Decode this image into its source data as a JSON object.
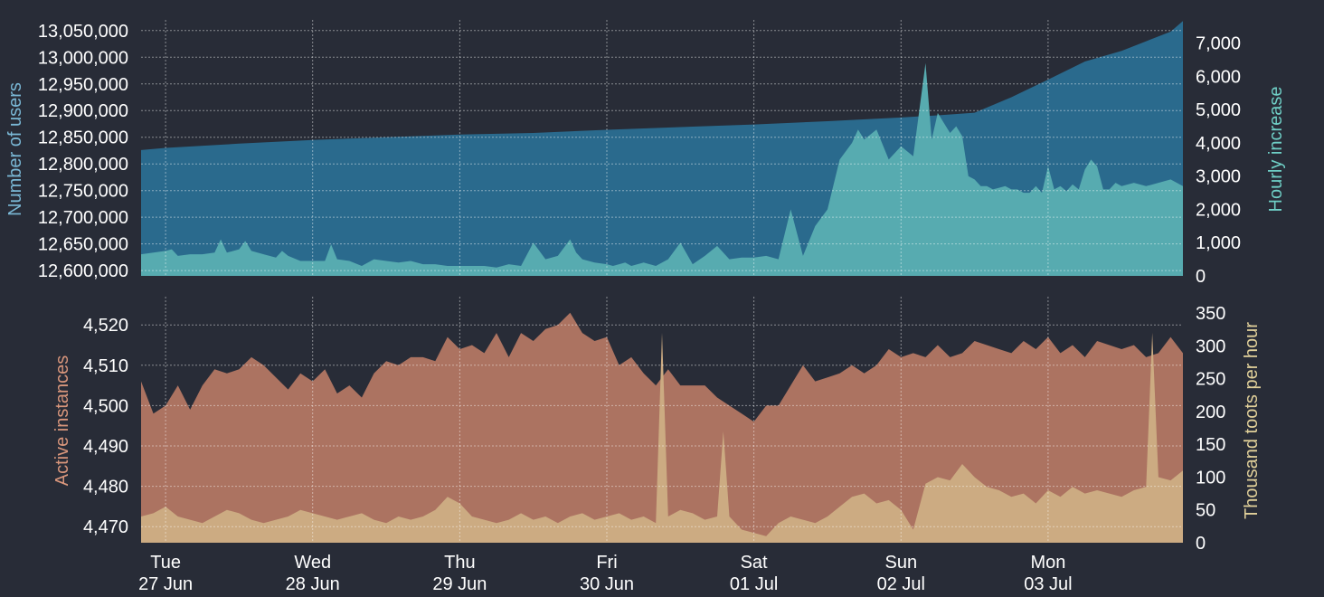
{
  "colors": {
    "background": "#282c37",
    "users_area": "#2a6a8d",
    "hourly_area": "#57abb0",
    "users_axis_label": "#7ab8d6",
    "hourly_axis_label": "#6fcfc6",
    "instances_area": "#ac7361",
    "toots_area": "#ccab82",
    "instances_axis_label": "#d9967c",
    "toots_axis_label": "#e2d19a",
    "tick_text": "#ffffff",
    "grid": "rgba(255,255,255,0.45)"
  },
  "x_axis": {
    "ticks": [
      {
        "day": "Tue",
        "date": "27 Jun"
      },
      {
        "day": "Wed",
        "date": "28 Jun"
      },
      {
        "day": "Thu",
        "date": "29 Jun"
      },
      {
        "day": "Fri",
        "date": "30 Jun"
      },
      {
        "day": "Sat",
        "date": "01 Jul"
      },
      {
        "day": "Sun",
        "date": "02 Jul"
      },
      {
        "day": "Mon",
        "date": "03 Jul"
      }
    ]
  },
  "chart_data": [
    {
      "type": "area",
      "x_unit": "hours since 00:00 27 Jun",
      "x_range": [
        -4,
        166
      ],
      "grid": true,
      "left_axis": {
        "label": "Number of users",
        "ylim": [
          12590000,
          13070000
        ],
        "ticks": [
          12600000,
          12650000,
          12700000,
          12750000,
          12800000,
          12850000,
          12900000,
          12950000,
          13000000,
          13050000
        ],
        "tick_labels": [
          "12,600,000",
          "12,650,000",
          "12,700,000",
          "12,750,000",
          "12,800,000",
          "12,850,000",
          "12,900,000",
          "12,950,000",
          "13,000,000",
          "13,050,000"
        ]
      },
      "right_axis": {
        "label": "Hourly increase",
        "ylim": [
          0,
          7700
        ],
        "ticks": [
          0,
          1000,
          2000,
          3000,
          4000,
          5000,
          6000,
          7000
        ],
        "tick_labels": [
          "0",
          "1,000",
          "2,000",
          "3,000",
          "4,000",
          "5,000",
          "6,000",
          "7,000"
        ]
      },
      "series": [
        {
          "name": "Number of users",
          "axis": "left",
          "x": [
            -4,
            0,
            12,
            24,
            36,
            48,
            60,
            72,
            84,
            96,
            108,
            120,
            126,
            132,
            138,
            144,
            150,
            156,
            160,
            164,
            166
          ],
          "values": [
            12826000,
            12830000,
            12838000,
            12845000,
            12850000,
            12855000,
            12858000,
            12864000,
            12869000,
            12874000,
            12880000,
            12887000,
            12891000,
            12896000,
            12925000,
            12958000,
            12992000,
            13012000,
            13030000,
            13048000,
            13068000
          ]
        },
        {
          "name": "Hourly increase",
          "axis": "right",
          "x": [
            -4,
            -2,
            0,
            1,
            2,
            4,
            6,
            8,
            9,
            10,
            12,
            13,
            14,
            16,
            18,
            19,
            20,
            22,
            24,
            26,
            27,
            28,
            30,
            32,
            34,
            36,
            38,
            40,
            42,
            44,
            46,
            48,
            50,
            52,
            54,
            56,
            58,
            60,
            62,
            64,
            66,
            67,
            68,
            70,
            72,
            73,
            74,
            75,
            76,
            78,
            80,
            82,
            84,
            86,
            88,
            90,
            92,
            94,
            96,
            98,
            100,
            102,
            104,
            106,
            108,
            110,
            112,
            113,
            114,
            116,
            118,
            120,
            122,
            124,
            125,
            126,
            128,
            129,
            130,
            131,
            132,
            133,
            134,
            135,
            136,
            137,
            138,
            139,
            140,
            141,
            142,
            143,
            144,
            145,
            146,
            147,
            148,
            149,
            150,
            151,
            152,
            153,
            154,
            155,
            156,
            158,
            160,
            162,
            164,
            166
          ],
          "values": [
            650,
            700,
            750,
            800,
            600,
            650,
            650,
            700,
            1100,
            700,
            800,
            1050,
            750,
            650,
            550,
            750,
            600,
            450,
            450,
            450,
            950,
            500,
            450,
            300,
            500,
            450,
            400,
            450,
            350,
            350,
            300,
            300,
            300,
            300,
            250,
            350,
            300,
            1000,
            500,
            600,
            1100,
            700,
            500,
            400,
            350,
            300,
            350,
            400,
            300,
            400,
            300,
            500,
            1000,
            350,
            600,
            900,
            500,
            550,
            550,
            600,
            500,
            2000,
            600,
            1500,
            2000,
            3500,
            4000,
            4400,
            4100,
            4400,
            3500,
            3900,
            3600,
            6400,
            4100,
            4900,
            4300,
            4500,
            4200,
            3000,
            2900,
            2700,
            2700,
            2600,
            2650,
            2700,
            2600,
            2600,
            2500,
            2500,
            2700,
            2500,
            3300,
            2600,
            2700,
            2550,
            2750,
            2600,
            3200,
            3500,
            3300,
            2600,
            2600,
            2800,
            2700,
            2800,
            2700,
            2800,
            2900,
            2700
          ]
        }
      ]
    },
    {
      "type": "area",
      "x_unit": "hours since 00:00 27 Jun",
      "x_range": [
        -4,
        166
      ],
      "grid": true,
      "left_axis": {
        "label": "Active instances",
        "ylim": [
          4466,
          4527
        ],
        "ticks": [
          4470,
          4480,
          4490,
          4500,
          4510,
          4520
        ],
        "tick_labels": [
          "4,470",
          "4,480",
          "4,490",
          "4,500",
          "4,510",
          "4,520"
        ]
      },
      "right_axis": {
        "label": "Thousand toots per hour",
        "ylim": [
          0,
          375
        ],
        "ticks": [
          0,
          50,
          100,
          150,
          200,
          250,
          300,
          350
        ],
        "tick_labels": [
          "0",
          "50",
          "100",
          "150",
          "200",
          "250",
          "300",
          "350"
        ]
      },
      "series": [
        {
          "name": "Active instances",
          "axis": "left",
          "x": [
            -4,
            -2,
            0,
            2,
            4,
            6,
            8,
            10,
            12,
            14,
            16,
            18,
            20,
            22,
            24,
            26,
            28,
            30,
            32,
            34,
            36,
            38,
            40,
            42,
            44,
            46,
            48,
            50,
            52,
            54,
            56,
            58,
            60,
            62,
            64,
            66,
            68,
            70,
            72,
            74,
            76,
            78,
            80,
            82,
            84,
            86,
            88,
            90,
            92,
            94,
            96,
            98,
            100,
            102,
            104,
            106,
            108,
            110,
            112,
            114,
            116,
            118,
            120,
            122,
            124,
            126,
            128,
            130,
            132,
            134,
            136,
            138,
            140,
            142,
            144,
            146,
            148,
            150,
            152,
            154,
            156,
            158,
            160,
            162,
            164,
            166
          ],
          "values": [
            4506,
            4498,
            4500,
            4505,
            4499,
            4505,
            4509,
            4508,
            4509,
            4512,
            4510,
            4507,
            4504,
            4508,
            4506,
            4509,
            4503,
            4505,
            4502,
            4508,
            4511,
            4510,
            4512,
            4512,
            4511,
            4517,
            4514,
            4515,
            4513,
            4518,
            4512,
            4518,
            4516,
            4519,
            4520,
            4523,
            4518,
            4516,
            4517,
            4510,
            4512,
            4508,
            4505,
            4509,
            4505,
            4505,
            4505,
            4502,
            4500,
            4498,
            4496,
            4500,
            4500,
            4505,
            4510,
            4506,
            4507,
            4508,
            4510,
            4508,
            4510,
            4514,
            4512,
            4513,
            4512,
            4515,
            4512,
            4513,
            4516,
            4515,
            4514,
            4513,
            4516,
            4514,
            4517,
            4513,
            4515,
            4512,
            4516,
            4515,
            4514,
            4515,
            4512,
            4513,
            4517,
            4513
          ]
        },
        {
          "name": "Thousand toots per hour",
          "axis": "right",
          "x": [
            -4,
            -2,
            0,
            2,
            4,
            6,
            8,
            10,
            12,
            14,
            16,
            18,
            20,
            22,
            24,
            26,
            28,
            30,
            32,
            34,
            36,
            38,
            40,
            42,
            44,
            46,
            48,
            50,
            52,
            54,
            56,
            58,
            60,
            62,
            64,
            66,
            68,
            70,
            72,
            74,
            76,
            78,
            80,
            81,
            82,
            84,
            86,
            88,
            90,
            91,
            92,
            94,
            96,
            98,
            100,
            102,
            104,
            106,
            108,
            110,
            112,
            114,
            116,
            118,
            120,
            122,
            124,
            126,
            128,
            130,
            132,
            134,
            136,
            138,
            140,
            142,
            144,
            146,
            148,
            150,
            152,
            154,
            156,
            158,
            160,
            161,
            162,
            164,
            166
          ],
          "values": [
            40,
            45,
            55,
            40,
            35,
            30,
            40,
            50,
            45,
            35,
            30,
            35,
            40,
            50,
            45,
            40,
            35,
            40,
            45,
            35,
            30,
            40,
            35,
            40,
            50,
            70,
            60,
            40,
            35,
            30,
            35,
            45,
            35,
            40,
            30,
            40,
            45,
            35,
            40,
            45,
            35,
            40,
            30,
            320,
            40,
            50,
            45,
            35,
            40,
            170,
            40,
            20,
            15,
            10,
            30,
            40,
            35,
            30,
            40,
            55,
            70,
            75,
            60,
            65,
            50,
            20,
            90,
            100,
            95,
            120,
            100,
            85,
            80,
            70,
            75,
            60,
            80,
            70,
            85,
            75,
            80,
            75,
            70,
            80,
            85,
            320,
            100,
            95,
            110
          ]
        }
      ]
    }
  ]
}
